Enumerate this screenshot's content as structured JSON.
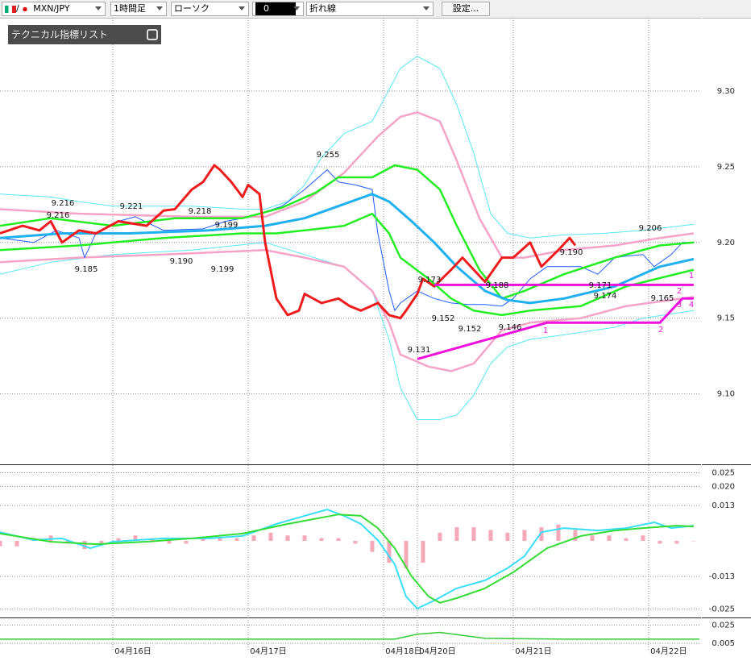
{
  "toolbar": {
    "pair": "MXN/JPY",
    "timeframe": "1時間足",
    "chart_type": "ローソク",
    "count": "0",
    "line_type": "折れ線",
    "settings": "設定..."
  },
  "indicator_panel": {
    "title": "テクニカル指標リスト"
  },
  "chart_data": [
    {
      "type": "line",
      "xlim": [
        0,
        124.3
      ],
      "ylim": [
        9.054,
        9.3495
      ],
      "yticks": [
        {
          "value": 9.3,
          "label": "9.30"
        },
        9.25,
        {
          "value": 9.2,
          "label": "9.20"
        },
        9.15,
        {
          "value": 9.1,
          "label": "9.10"
        }
      ],
      "grid": true,
      "price_labels": [
        "9.216",
        "9.216",
        "9.221",
        "9.218",
        "9.185",
        "9.190",
        "9.199",
        "9.199",
        "9.255",
        "9.131",
        "9.173",
        "9.152",
        "9.152",
        "9.188",
        "9.146",
        "9.190",
        "9.171",
        "9.174",
        "9.206",
        "9.165"
      ],
      "trend_labels": [
        "1",
        "2",
        "1",
        "2",
        "3",
        "4"
      ],
      "series": [
        {
          "color": "#56e6f7",
          "width": 1,
          "x": [
            0,
            9,
            14,
            20,
            26,
            34,
            43,
            47,
            51,
            54,
            57,
            61,
            66,
            68,
            71,
            74,
            78,
            81,
            84,
            87,
            90,
            94,
            100,
            107,
            114,
            123
          ],
          "values": [
            9.232,
            9.23,
            9.227,
            9.224,
            9.224,
            9.224,
            9.222,
            9.222,
            9.227,
            9.238,
            9.256,
            9.272,
            9.28,
            9.294,
            9.315,
            9.323,
            9.315,
            9.291,
            9.259,
            9.219,
            9.206,
            9.203,
            9.205,
            9.206,
            9.208,
            9.212
          ]
        },
        {
          "color": "#56e6f7",
          "width": 1,
          "x": [
            0,
            9,
            20,
            34,
            47,
            54,
            61,
            66,
            69,
            71,
            74,
            78,
            81,
            84,
            87,
            90,
            94,
            100,
            109,
            114,
            123
          ],
          "values": [
            9.179,
            9.187,
            9.192,
            9.195,
            9.2,
            9.192,
            9.184,
            9.168,
            9.136,
            9.104,
            9.083,
            9.083,
            9.086,
            9.099,
            9.12,
            9.131,
            9.136,
            9.139,
            9.144,
            9.15,
            9.155
          ]
        },
        {
          "color": "#f5a3c7",
          "width": 2.5,
          "x": [
            0,
            14,
            34,
            47,
            54,
            61,
            67,
            71,
            74,
            78,
            81,
            85,
            89,
            93,
            100,
            109,
            117,
            123
          ],
          "values": [
            9.222,
            9.219,
            9.217,
            9.217,
            9.227,
            9.246,
            9.27,
            9.283,
            9.286,
            9.28,
            9.254,
            9.216,
            9.19,
            9.19,
            9.195,
            9.198,
            9.203,
            9.206
          ]
        },
        {
          "color": "#f5a3c7",
          "width": 2.5,
          "x": [
            0,
            14,
            29,
            47,
            54,
            61,
            66,
            69,
            71,
            76,
            80,
            84,
            89,
            94,
            103,
            111,
            123
          ],
          "values": [
            9.187,
            9.19,
            9.192,
            9.195,
            9.19,
            9.184,
            9.168,
            9.147,
            9.126,
            9.118,
            9.115,
            9.12,
            9.142,
            9.147,
            9.15,
            9.158,
            9.164
          ]
        },
        {
          "color": "#1e5cff",
          "width": 1,
          "x": [
            0,
            6,
            10,
            14,
            15,
            17,
            21,
            24,
            29,
            36,
            40,
            43,
            46,
            50,
            54,
            58,
            60,
            63,
            66,
            67,
            69,
            70,
            71,
            74,
            77,
            80,
            83,
            86,
            89,
            91,
            94,
            97,
            100,
            103,
            106,
            109,
            111,
            114,
            116,
            119,
            121,
            123
          ],
          "values": [
            9.203,
            9.2,
            9.208,
            9.203,
            9.19,
            9.206,
            9.214,
            9.217,
            9.208,
            9.209,
            9.214,
            9.216,
            9.219,
            9.224,
            9.235,
            9.248,
            9.24,
            9.238,
            9.235,
            9.206,
            9.168,
            9.155,
            9.16,
            9.168,
            9.163,
            9.16,
            9.159,
            9.159,
            9.158,
            9.163,
            9.176,
            9.184,
            9.184,
            9.184,
            9.179,
            9.19,
            9.191,
            9.192,
            9.184,
            9.192,
            9.2,
            9.2
          ]
        },
        {
          "color": "#22ee22",
          "width": 2.5,
          "x": [
            0,
            9,
            20,
            31,
            43,
            50,
            56,
            60,
            66,
            70,
            74,
            78,
            81,
            85,
            89,
            93,
            100,
            109,
            117,
            123
          ],
          "values": [
            9.211,
            9.216,
            9.211,
            9.216,
            9.216,
            9.223,
            9.233,
            9.243,
            9.243,
            9.251,
            9.248,
            9.235,
            9.211,
            9.182,
            9.163,
            9.168,
            9.179,
            9.19,
            9.198,
            9.2
          ]
        },
        {
          "color": "#22ee22",
          "width": 2.5,
          "x": [
            0,
            14,
            29,
            43,
            49,
            54,
            61,
            66,
            69,
            71,
            76,
            80,
            84,
            89,
            94,
            103,
            111,
            123
          ],
          "values": [
            9.195,
            9.198,
            9.203,
            9.206,
            9.206,
            9.208,
            9.211,
            9.219,
            9.206,
            9.19,
            9.176,
            9.163,
            9.155,
            9.152,
            9.155,
            9.158,
            9.171,
            9.182
          ]
        },
        {
          "color": "#1fb0f0",
          "width": 3,
          "x": [
            0,
            11,
            23,
            37,
            47,
            54,
            60,
            66,
            69,
            73,
            77,
            81,
            86,
            90,
            94,
            100,
            109,
            117,
            123
          ],
          "values": [
            9.203,
            9.206,
            9.206,
            9.208,
            9.211,
            9.216,
            9.224,
            9.232,
            9.227,
            9.214,
            9.2,
            9.184,
            9.168,
            9.162,
            9.16,
            9.163,
            9.171,
            9.184,
            9.189
          ]
        },
        {
          "color": "#ee1c1c",
          "width": 3,
          "x": [
            0,
            4,
            7,
            9,
            11,
            14,
            17,
            21,
            26,
            29,
            31,
            34,
            36,
            38,
            39,
            41,
            43,
            44,
            46,
            47,
            49,
            51,
            53,
            54,
            57,
            60,
            62,
            64,
            67,
            69,
            71,
            72,
            74,
            75,
            77,
            80,
            82,
            84,
            86,
            89,
            91,
            94,
            96,
            99,
            101,
            102
          ],
          "values": [
            9.206,
            9.211,
            9.208,
            9.214,
            9.2,
            9.208,
            9.206,
            9.214,
            9.211,
            9.221,
            9.222,
            9.235,
            9.24,
            9.251,
            9.248,
            9.24,
            9.23,
            9.238,
            9.232,
            9.2,
            9.163,
            9.152,
            9.155,
            9.166,
            9.16,
            9.163,
            9.158,
            9.155,
            9.16,
            9.152,
            9.15,
            9.155,
            9.166,
            9.176,
            9.171,
            9.182,
            9.19,
            9.182,
            9.174,
            9.19,
            9.19,
            9.2,
            9.184,
            9.195,
            9.203,
            9.198
          ]
        },
        {
          "color": "#ee11dd",
          "width": 3,
          "x": [
            77,
            123
          ],
          "values": [
            9.172,
            9.172
          ]
        },
        {
          "color": "#ee11dd",
          "width": 3,
          "x": [
            74,
            97,
            117,
            121,
            123
          ],
          "values": [
            9.123,
            9.147,
            9.147,
            9.163,
            9.163
          ]
        }
      ]
    },
    {
      "type": "line",
      "xlim": [
        0,
        124.3
      ],
      "ylim": [
        -0.0278,
        0.0275
      ],
      "yticks": [
        0.025,
        {
          "value": 0.02,
          "label": "0.020"
        },
        0.013,
        -0.013,
        -0.025
      ],
      "grid": true,
      "series": [
        {
          "type": "bar",
          "color": "#f5a9b8",
          "x": [
            0,
            3,
            6,
            9,
            12,
            15,
            18,
            21,
            24,
            27,
            30,
            33,
            36,
            39,
            42,
            45,
            48,
            51,
            54,
            57,
            60,
            63,
            66,
            69,
            72,
            75,
            78,
            81,
            84,
            87,
            90,
            93,
            96,
            99,
            102,
            105,
            108,
            111,
            114,
            117,
            120,
            123
          ],
          "values": [
            -0.002,
            -0.002,
            0.001,
            0.002,
            -0.001,
            -0.003,
            -0.001,
            0.001,
            0.002,
            0.001,
            -0.001,
            -0.001,
            0.001,
            0.001,
            0.001,
            0.002,
            0.003,
            0.002,
            0.002,
            0.001,
            0.001,
            -0.001,
            -0.004,
            -0.008,
            -0.01,
            -0.008,
            0.003,
            0.005,
            0.005,
            0.004,
            0.003,
            0.004,
            0.005,
            0.006,
            0.004,
            0.002,
            0.002,
            0.001,
            0.002,
            -0.001,
            -0.001,
            0
          ]
        },
        {
          "color": "#38def8",
          "width": 2,
          "x": [
            0,
            6,
            11,
            16,
            20,
            29,
            37,
            43,
            49,
            54,
            58,
            61,
            64,
            67,
            70,
            72,
            74,
            77,
            81,
            86,
            90,
            93,
            96,
            100,
            106,
            111,
            116,
            119,
            123
          ],
          "values": [
            0.0032,
            0.0003,
            0.0009,
            -0.0027,
            -0.0003,
            0.0009,
            0.0009,
            0.0018,
            0.0062,
            0.0092,
            0.0115,
            0.0092,
            0.0062,
            0.0003,
            -0.0086,
            -0.0204,
            -0.0248,
            -0.0219,
            -0.0174,
            -0.0145,
            -0.01,
            -0.0056,
            0.0032,
            0.0047,
            0.0038,
            0.0047,
            0.0068,
            0.0047,
            0.0056
          ]
        },
        {
          "color": "#33dd33",
          "width": 2,
          "x": [
            0,
            9,
            17,
            26,
            34,
            43,
            51,
            60,
            64,
            67,
            70,
            73,
            76,
            78,
            81,
            86,
            91,
            97,
            103,
            109,
            114,
            120,
            123
          ],
          "values": [
            0.0027,
            -0.0003,
            -0.0012,
            -0.0003,
            0.0009,
            0.0027,
            0.0062,
            0.0097,
            0.0092,
            0.0047,
            -0.0027,
            -0.013,
            -0.0204,
            -0.0227,
            -0.021,
            -0.0174,
            -0.0115,
            -0.0027,
            0.0018,
            0.0038,
            0.0047,
            0.0056,
            0.0053
          ]
        }
      ]
    },
    {
      "type": "line",
      "xlim": [
        0,
        124.3
      ],
      "ylim": [
        -0.0036,
        0.0314
      ],
      "yticks": [
        0.025,
        0.005
      ],
      "grid": true,
      "xticks": [
        {
          "value": 20,
          "label": "04月16日"
        },
        {
          "value": 44,
          "label": "04月17日"
        },
        {
          "value": 68,
          "label": "04月18日"
        },
        {
          "value": 74,
          "label": "04月20日"
        },
        {
          "value": 91,
          "label": "04月21日"
        },
        {
          "value": 115,
          "label": "04月22日"
        }
      ],
      "series": [
        {
          "color": "#33cc33",
          "width": 1.5,
          "x": [
            0,
            70,
            74,
            78,
            86,
            100,
            124
          ],
          "values": [
            0.0096,
            0.0096,
            0.015,
            0.017,
            0.0105,
            0.0096,
            0.0096
          ]
        }
      ]
    }
  ]
}
